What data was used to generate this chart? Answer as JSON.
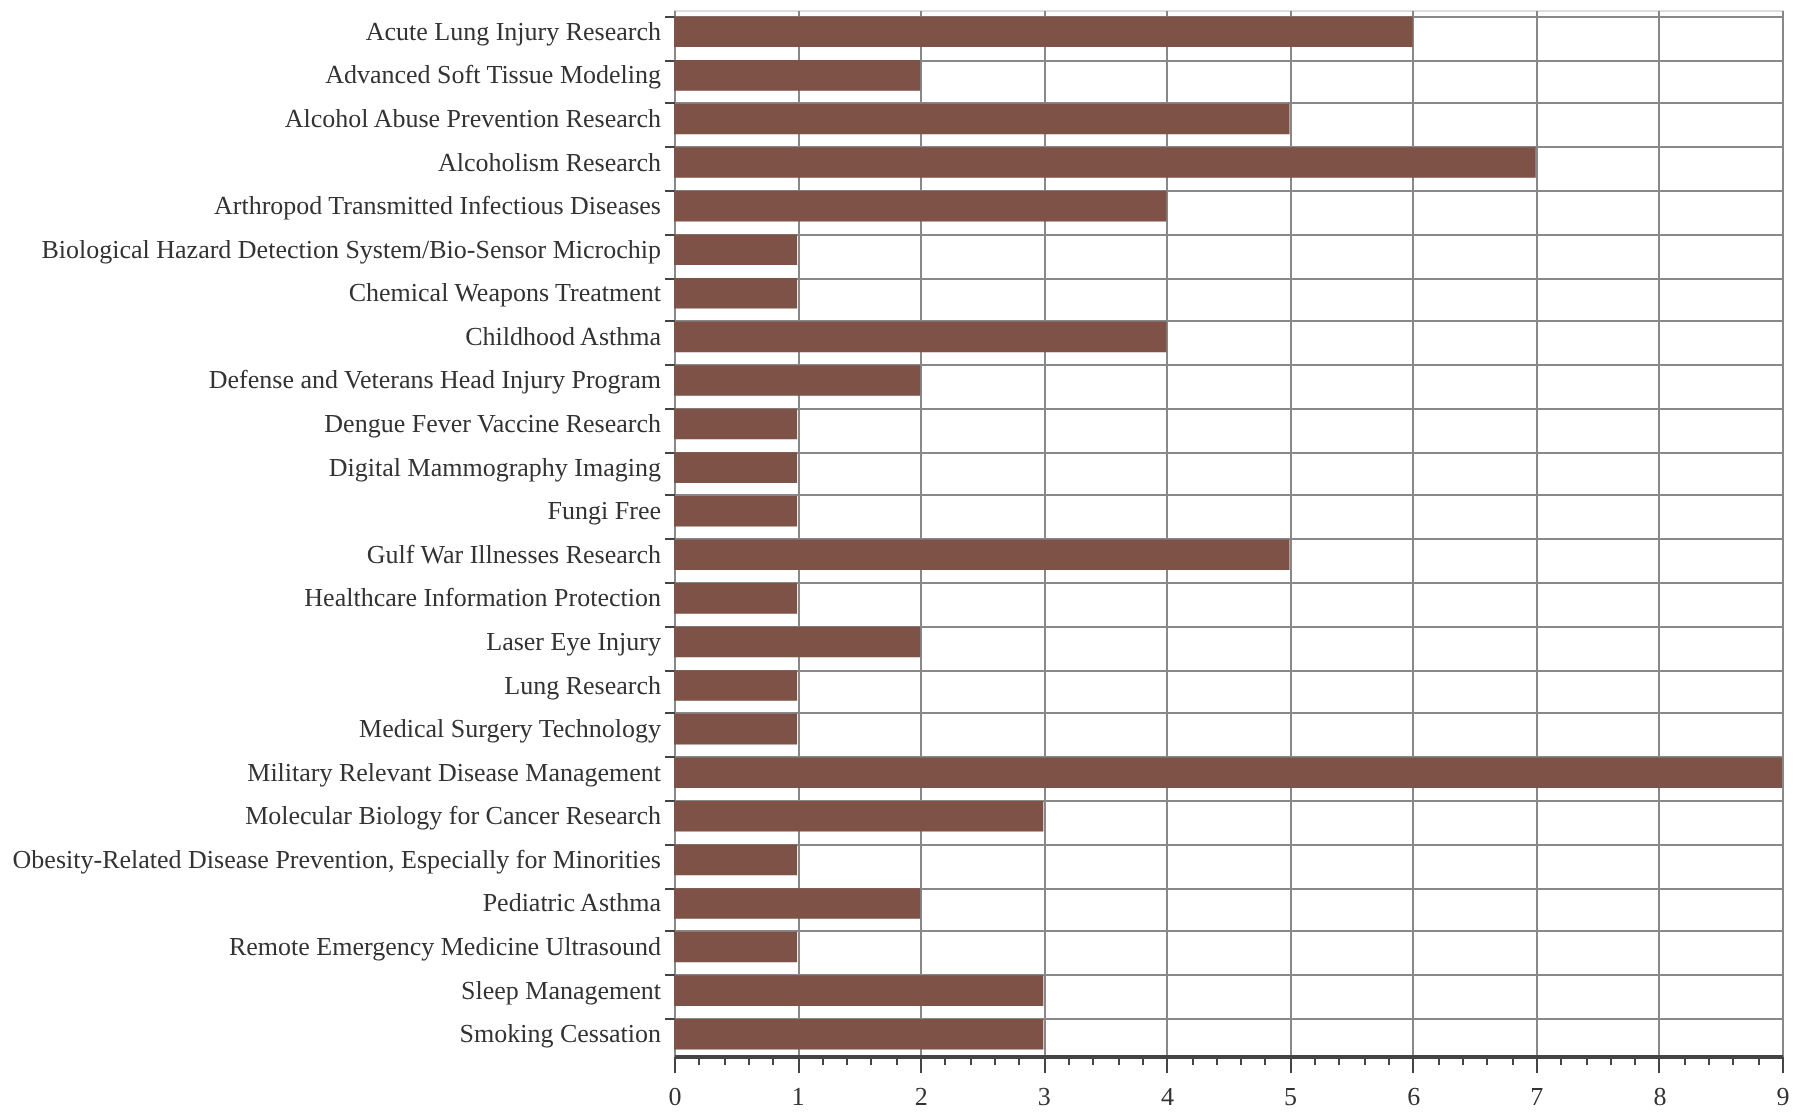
{
  "chart_data": {
    "type": "bar",
    "orientation": "horizontal",
    "categories": [
      "Acute Lung Injury Research",
      "Advanced Soft Tissue Modeling",
      "Alcohol Abuse Prevention Research",
      "Alcoholism Research",
      "Arthropod Transmitted Infectious Diseases",
      "Biological Hazard Detection System/Bio-Sensor Microchip",
      "Chemical Weapons Treatment",
      "Childhood Asthma",
      "Defense and Veterans Head Injury Program",
      "Dengue Fever Vaccine Research",
      "Digital Mammography Imaging",
      "Fungi Free",
      "Gulf War Illnesses Research",
      "Healthcare Information Protection",
      "Laser Eye Injury",
      "Lung Research",
      "Medical Surgery Technology",
      "Military Relevant Disease Management",
      "Molecular Biology for Cancer Research",
      "Obesity-Related Disease Prevention, Especially for Minorities",
      "Pediatric Asthma",
      "Remote Emergency Medicine Ultrasound",
      "Sleep Management",
      "Smoking Cessation"
    ],
    "values": [
      6,
      2,
      5,
      7,
      4,
      1,
      1,
      4,
      2,
      1,
      1,
      1,
      5,
      1,
      2,
      1,
      1,
      9,
      3,
      1,
      2,
      1,
      3,
      3
    ],
    "color": "#7f5247",
    "xlim": [
      0,
      9
    ],
    "xticks": [
      0,
      {
        "value": 0.2,
        "label": null
      },
      {
        "value": 0.4,
        "label": null
      },
      {
        "value": 0.6,
        "label": null
      },
      {
        "value": 0.8,
        "label": null
      },
      1,
      {
        "value": 1.2,
        "label": null
      },
      {
        "value": 1.4,
        "label": null
      },
      {
        "value": 1.6,
        "label": null
      },
      {
        "value": 1.8,
        "label": null
      },
      2,
      {
        "value": 2.2,
        "label": null
      },
      {
        "value": 2.4,
        "label": null
      },
      {
        "value": 2.6,
        "label": null
      },
      {
        "value": 2.8,
        "label": null
      },
      3,
      {
        "value": 3.2,
        "label": null
      },
      {
        "value": 3.4,
        "label": null
      },
      {
        "value": 3.6,
        "label": null
      },
      {
        "value": 3.8,
        "label": null
      },
      4,
      {
        "value": 4.2,
        "label": null
      },
      {
        "value": 4.4,
        "label": null
      },
      {
        "value": 4.6,
        "label": null
      },
      {
        "value": 4.8,
        "label": null
      },
      5,
      {
        "value": 5.2,
        "label": null
      },
      {
        "value": 5.4,
        "label": null
      },
      {
        "value": 5.6,
        "label": null
      },
      {
        "value": 5.8,
        "label": null
      },
      6,
      {
        "value": 6.2,
        "label": null
      },
      {
        "value": 6.4,
        "label": null
      },
      {
        "value": 6.6,
        "label": null
      },
      {
        "value": 6.8,
        "label": null
      },
      7,
      {
        "value": 7.2,
        "label": null
      },
      {
        "value": 7.4,
        "label": null
      },
      {
        "value": 7.6,
        "label": null
      },
      {
        "value": 7.8,
        "label": null
      },
      8,
      {
        "value": 8.2,
        "label": null
      },
      {
        "value": 8.4,
        "label": null
      },
      {
        "value": 8.6,
        "label": null
      },
      {
        "value": 8.8,
        "label": null
      },
      9
    ],
    "grid": true
  }
}
